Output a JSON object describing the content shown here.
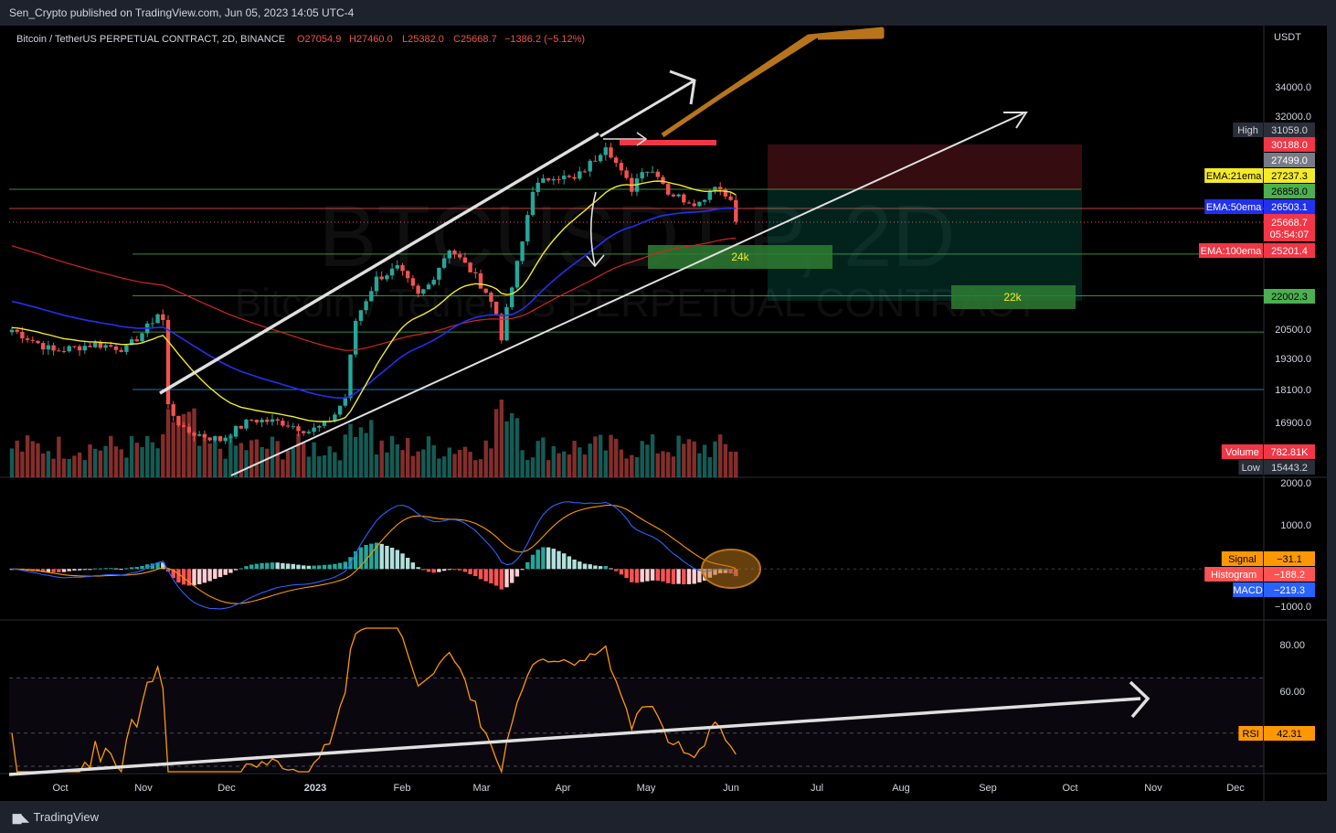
{
  "header": {
    "publisher": "Sen_Crypto published on TradingView.com, Jun 05, 2023 14:05 UTC-4"
  },
  "footer": {
    "brand": "TradingView",
    "logo": "tradingview-logo-icon"
  },
  "legend": {
    "symbol": "Bitcoin / TetherUS PERPETUAL CONTRACT, 2D, BINANCE",
    "open": "O27054.9",
    "high": "H27460.0",
    "low": "L25382.0",
    "close": "C25668.7",
    "change": "−1386.2 (−5.12%)"
  },
  "watermark": {
    "ticker": "BTCUSDT.P, 2D",
    "name": "Bitcoin / TetherUS PERPETUAL CONTRACT"
  },
  "colors": {
    "up": "#26a69a",
    "down": "#ef5350",
    "ema21": "#f5ea28",
    "ema50": "#2230f0",
    "ema100": "#d02525",
    "macd": "#2962ff",
    "signal": "#ff9800",
    "rsi": "#ff9800"
  },
  "chart_data": [
    {
      "type": "candlestick",
      "pane": "price",
      "y_unit": "USDT",
      "ylim": [
        15443.2,
        37000
      ],
      "yticks": [
        34000,
        32000,
        20500,
        19300,
        18100,
        16900
      ],
      "xticks": [
        "Oct",
        "Nov",
        "Dec",
        "2023",
        "Feb",
        "Mar",
        "Apr",
        "May",
        "Jun",
        "Jul",
        "Aug",
        "Sep",
        "Oct",
        "Nov",
        "Dec"
      ],
      "series": [
        {
          "name": "EMA:21ema",
          "last": 27237.3
        },
        {
          "name": "EMA:50ema",
          "last": 26503.1
        },
        {
          "name": "EMA:100ema",
          "last": 25201.4
        }
      ],
      "price_labels": [
        {
          "label": "High",
          "value": "31059.0"
        },
        {
          "value": "30188.0"
        },
        {
          "value": "27499.0"
        },
        {
          "label": "EMA:21ema",
          "value": "27237.3"
        },
        {
          "value": "26858.0"
        },
        {
          "label": "EMA:50ema",
          "value": "26503.1"
        },
        {
          "value": "25668.7",
          "countdown": "05:54:07"
        },
        {
          "label": "EMA:100ema",
          "value": "25201.4"
        },
        {
          "value": "22002.3"
        },
        {
          "label": "Volume",
          "value": "782.81K"
        },
        {
          "label": "Low",
          "value": "15443.2"
        }
      ],
      "horizontal_levels": [
        26858,
        26503,
        24000,
        22000,
        20400,
        18100
      ],
      "annotations": [
        {
          "text": "24k",
          "value": 24000
        },
        {
          "text": "22k",
          "value": 22000
        }
      ]
    },
    {
      "type": "macd",
      "pane": "macd",
      "ylim": [
        -1300,
        2200
      ],
      "yticks": [
        "2000.0",
        "1000.0",
        "−1000.0"
      ],
      "series": [
        {
          "name": "Signal",
          "last": "−31.1"
        },
        {
          "name": "Histogram",
          "last": "−188.2"
        },
        {
          "name": "MACD",
          "last": "−219.3"
        }
      ]
    },
    {
      "type": "line",
      "pane": "rsi",
      "ylim": [
        35,
        90
      ],
      "yticks": [
        "80.00",
        "60.00"
      ],
      "bands": [
        30,
        70
      ],
      "series": [
        {
          "name": "RSI",
          "last": "42.31"
        }
      ]
    }
  ]
}
